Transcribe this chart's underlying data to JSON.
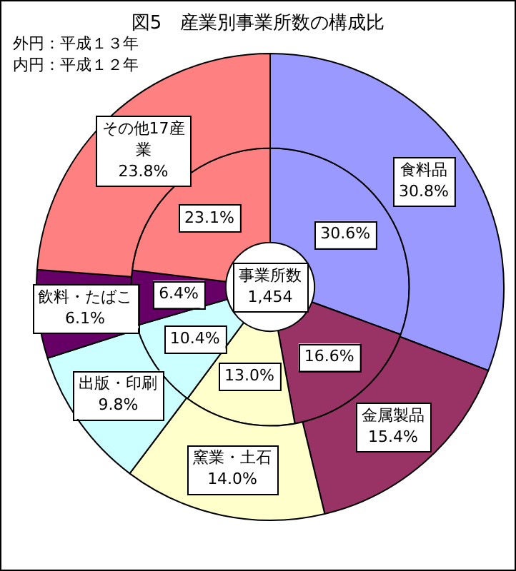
{
  "chart_data": {
    "type": "donut",
    "title": "図5　産業別事業所数の構成比",
    "categories": [
      "食料品",
      "金属製品",
      "窯業・土石",
      "出版・印刷",
      "飲料・たばこ",
      "その他17産業"
    ],
    "colors": [
      "#9999ff",
      "#993366",
      "#ffffcc",
      "#ccffff",
      "#660066",
      "#ff8080"
    ],
    "series": [
      {
        "values": [
          30.8,
          15.4,
          14.0,
          9.8,
          6.1,
          23.8
        ],
        "value_labels": [
          "30.8%",
          "15.4%",
          "14.0%",
          "9.8%",
          "6.1%",
          "23.8%"
        ]
      },
      {
        "values": [
          30.6,
          16.6,
          13.0,
          10.4,
          6.4,
          23.1
        ],
        "value_labels": [
          "30.6%",
          "16.6%",
          "13.0%",
          "10.4%",
          "6.4%",
          "23.1%"
        ]
      }
    ],
    "annotations": [
      "事業所数\n1,454",
      "外円：平成１３年",
      "内円：平成１２年"
    ]
  }
}
